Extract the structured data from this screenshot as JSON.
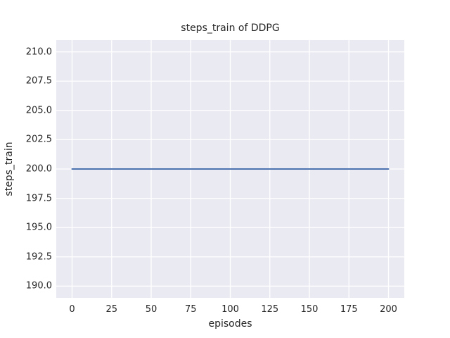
{
  "figure": {
    "background": "#ffffff"
  },
  "chart_data": {
    "type": "line",
    "title": "steps_train of DDPG",
    "xlabel": "episodes",
    "ylabel": "steps_train",
    "xlim": [
      -10,
      210
    ],
    "ylim": [
      189,
      211
    ],
    "x_ticks": [
      {
        "value": 0,
        "label": "0"
      },
      {
        "value": 25,
        "label": "25"
      },
      {
        "value": 50,
        "label": "50"
      },
      {
        "value": 75,
        "label": "75"
      },
      {
        "value": 100,
        "label": "100"
      },
      {
        "value": 125,
        "label": "125"
      },
      {
        "value": 150,
        "label": "150"
      },
      {
        "value": 175,
        "label": "175"
      },
      {
        "value": 200,
        "label": "200"
      }
    ],
    "y_ticks": [
      {
        "value": 190.0,
        "label": "190.0"
      },
      {
        "value": 192.5,
        "label": "192.5"
      },
      {
        "value": 195.0,
        "label": "195.0"
      },
      {
        "value": 197.5,
        "label": "197.5"
      },
      {
        "value": 200.0,
        "label": "200.0"
      },
      {
        "value": 202.5,
        "label": "202.5"
      },
      {
        "value": 205.0,
        "label": "205.0"
      },
      {
        "value": 207.5,
        "label": "207.5"
      },
      {
        "value": 210.0,
        "label": "210.0"
      }
    ],
    "grid": true,
    "legend": "none",
    "style": {
      "axes_background": "#eaeaf2",
      "grid_color": "#ffffff",
      "text_color": "#262626",
      "series_color": "#4c72b0"
    },
    "series": [
      {
        "name": "steps_train",
        "x": [
          0,
          200
        ],
        "y": [
          200,
          200
        ],
        "color": "#4c72b0"
      }
    ]
  }
}
